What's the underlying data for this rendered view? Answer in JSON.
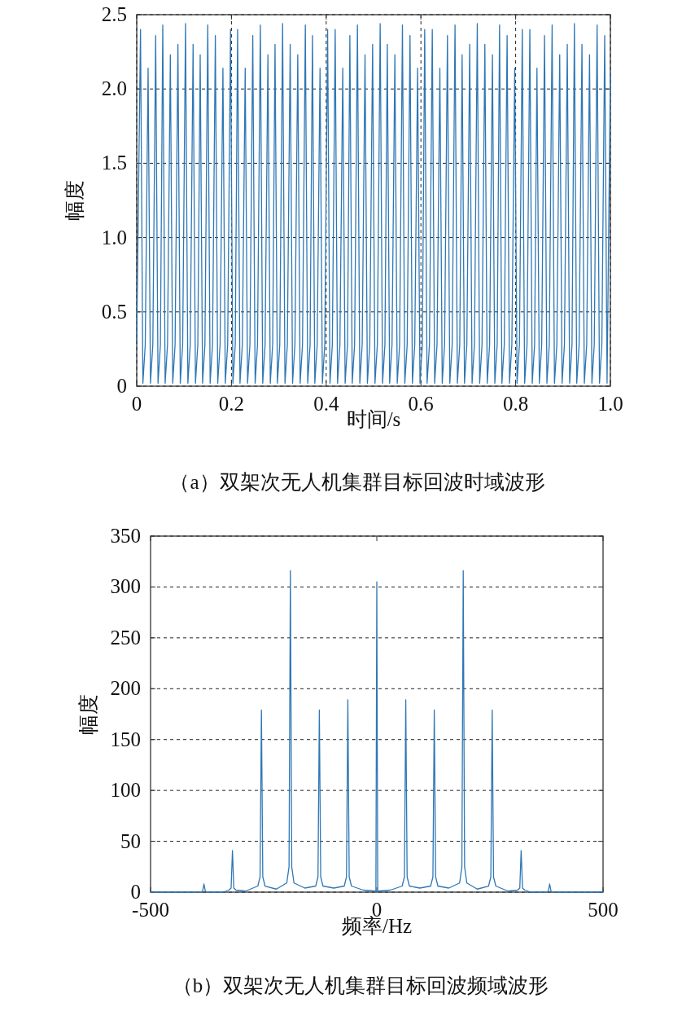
{
  "chart_data": [
    {
      "type": "line",
      "xlabel": "时间/s",
      "ylabel": "幅度",
      "annotations": [
        "（a）双架次无人机集群目标回波时域波形"
      ],
      "xlim": [
        0,
        1
      ],
      "xticks": [
        0,
        0.2,
        0.4,
        0.6,
        0.8,
        {
          "value": 1,
          "label": "1.0"
        }
      ],
      "ylim": [
        0,
        2.5
      ],
      "yticks": [
        0,
        0.5,
        {
          "value": 1,
          "label": "1.0"
        },
        1.5,
        {
          "value": 2,
          "label": "2.0"
        },
        2.5
      ],
      "grid": true,
      "series": [
        {
          "color": "#2e77b5",
          "x": [
            0,
            0.008,
            0.013,
            0.018,
            0.024,
            0.029,
            0.034,
            0.04,
            0.045,
            0.05,
            0.055,
            0.06,
            0.065,
            0.071,
            0.076,
            0.081,
            0.087,
            0.092,
            0.097,
            0.103,
            0.108,
            0.113,
            0.119,
            0.124,
            0.129,
            0.134,
            0.139,
            0.144,
            0.15,
            0.155,
            0.16,
            0.166,
            0.171,
            0.176,
            0.182,
            0.187,
            0.192,
            0.198,
            0.203,
            0.208,
            0.213,
            0.218,
            0.223,
            0.229,
            0.234,
            0.239,
            0.245,
            0.25,
            0.255,
            0.261,
            0.266,
            0.271,
            0.277,
            0.282,
            0.287,
            0.292,
            0.297,
            0.302,
            0.308,
            0.313,
            0.318,
            0.324,
            0.329,
            0.334,
            0.34,
            0.345,
            0.35,
            0.356,
            0.361,
            0.366,
            0.371,
            0.376,
            0.381,
            0.387,
            0.392,
            0.397,
            0.403,
            0.408,
            0.413,
            0.419,
            0.424,
            0.429,
            0.435,
            0.44,
            0.445,
            0.45,
            0.455,
            0.46,
            0.466,
            0.471,
            0.476,
            0.482,
            0.487,
            0.492,
            0.498,
            0.503,
            0.508,
            0.514,
            0.519,
            0.524,
            0.529,
            0.534,
            0.539,
            0.545,
            0.55,
            0.555,
            0.561,
            0.566,
            0.571,
            0.577,
            0.582,
            0.587,
            0.593,
            0.598,
            0.603,
            0.608,
            0.613,
            0.618,
            0.624,
            0.629,
            0.634,
            0.64,
            0.645,
            0.65,
            0.656,
            0.661,
            0.666,
            0.672,
            0.677,
            0.682,
            0.687,
            0.692,
            0.697,
            0.703,
            0.708,
            0.713,
            0.719,
            0.724,
            0.729,
            0.735,
            0.74,
            0.745,
            0.751,
            0.756,
            0.761,
            0.766,
            0.771,
            0.776,
            0.782,
            0.787,
            0.792,
            0.798,
            0.803,
            0.808,
            0.814,
            0.819,
            0.824,
            0.83,
            0.835,
            0.84,
            0.845,
            0.85,
            0.855,
            0.861,
            0.866,
            0.871,
            0.877,
            0.882,
            0.887,
            0.893,
            0.898,
            0.903,
            0.909,
            0.914,
            0.919,
            0.924,
            0.929,
            0.934,
            0.94,
            0.945,
            0.95,
            0.956,
            0.961,
            0.966,
            0.972,
            0.977,
            0.982,
            0.988,
            0.993,
            1.0
          ],
          "values": [
            0.3,
            2.4,
            0.02,
            0.28,
            2.14,
            0.02,
            0.28,
            2.36,
            0.02,
            0.28,
            2.43,
            0.02,
            0.28,
            2.23,
            0.02,
            0.28,
            2.3,
            0.02,
            0.28,
            2.44,
            0.02,
            0.28,
            2.3,
            0.02,
            0.28,
            2.23,
            0.02,
            0.28,
            2.43,
            0.02,
            0.28,
            2.36,
            0.02,
            0.28,
            2.14,
            0.02,
            0.28,
            2.4,
            0.02,
            0.28,
            2.4,
            0.02,
            0.28,
            2.14,
            0.02,
            0.28,
            2.36,
            0.02,
            0.28,
            2.43,
            0.02,
            0.28,
            2.23,
            0.02,
            0.28,
            2.3,
            0.02,
            0.28,
            2.44,
            0.02,
            0.28,
            2.3,
            0.02,
            0.28,
            2.23,
            0.02,
            0.28,
            2.43,
            0.02,
            0.28,
            2.36,
            0.02,
            0.28,
            2.14,
            0.02,
            0.28,
            2.4,
            0.02,
            0.28,
            2.4,
            0.02,
            0.28,
            2.14,
            0.02,
            0.28,
            2.36,
            0.02,
            0.28,
            2.43,
            0.02,
            0.28,
            2.23,
            0.02,
            0.28,
            2.3,
            0.02,
            0.28,
            2.44,
            0.02,
            0.28,
            2.3,
            0.02,
            0.28,
            2.23,
            0.02,
            0.28,
            2.43,
            0.02,
            0.28,
            2.36,
            0.02,
            0.28,
            2.14,
            0.02,
            0.28,
            2.4,
            0.02,
            0.28,
            2.4,
            0.02,
            0.28,
            2.14,
            0.02,
            0.28,
            2.36,
            0.02,
            0.28,
            2.43,
            0.02,
            0.28,
            2.23,
            0.02,
            0.28,
            2.3,
            0.02,
            0.28,
            2.44,
            0.02,
            0.28,
            2.3,
            0.02,
            0.28,
            2.23,
            0.02,
            0.28,
            2.43,
            0.02,
            0.28,
            2.36,
            0.02,
            0.28,
            2.14,
            0.02,
            0.28,
            2.4,
            0.02,
            0.28,
            2.4,
            0.02,
            0.28,
            2.14,
            0.02,
            0.28,
            2.36,
            0.02,
            0.28,
            2.43,
            0.02,
            0.28,
            2.23,
            0.02,
            0.28,
            2.3,
            0.02,
            0.28,
            2.44,
            0.02,
            0.28,
            2.3,
            0.02,
            0.28,
            2.23,
            0.02,
            0.28,
            2.43,
            0.02,
            0.28,
            2.36,
            0.02,
            2.12
          ]
        }
      ]
    },
    {
      "type": "line",
      "xlabel": "频率/Hz",
      "ylabel": "幅度",
      "annotations": [
        "（b）双架次无人机集群目标回波频域波形"
      ],
      "xlim": [
        -500,
        500
      ],
      "xticks": [
        -500,
        0,
        500
      ],
      "ylim": [
        0,
        350
      ],
      "yticks": [
        0,
        50,
        100,
        150,
        200,
        250,
        300,
        350
      ],
      "grid": "y",
      "series": [
        {
          "color": "#2e77b5",
          "x": [
            -500,
            -420,
            -390,
            -385,
            -382,
            -379,
            -374,
            -340,
            -327,
            -322,
            -319,
            -316,
            -311,
            -290,
            -263,
            -258,
            -255,
            -252,
            -247,
            -222,
            -199,
            -194,
            -191,
            -188,
            -183,
            -159,
            -135,
            -130,
            -127,
            -124,
            -119,
            -95,
            -72,
            -67,
            -64,
            -61,
            -56,
            -30,
            -2,
            0,
            2,
            30,
            56,
            61,
            64,
            67,
            72,
            95,
            119,
            124,
            127,
            130,
            135,
            159,
            183,
            188,
            191,
            194,
            199,
            222,
            247,
            252,
            255,
            258,
            263,
            290,
            311,
            316,
            319,
            322,
            327,
            340,
            374,
            379,
            382,
            385,
            390,
            420,
            500
          ],
          "values": [
            0,
            0,
            0,
            1,
            8,
            1,
            0,
            0,
            2,
            4,
            41,
            4,
            2,
            1,
            6,
            15,
            179,
            15,
            6,
            3,
            9,
            25,
            316,
            25,
            9,
            4,
            6,
            15,
            179,
            15,
            6,
            4,
            6,
            15,
            189,
            15,
            6,
            2,
            1,
            305,
            1,
            2,
            6,
            15,
            189,
            15,
            6,
            4,
            6,
            15,
            179,
            15,
            6,
            4,
            9,
            25,
            316,
            25,
            9,
            3,
            6,
            15,
            179,
            15,
            6,
            1,
            2,
            4,
            41,
            4,
            2,
            0,
            0,
            1,
            8,
            1,
            0,
            0,
            0
          ]
        }
      ]
    }
  ]
}
